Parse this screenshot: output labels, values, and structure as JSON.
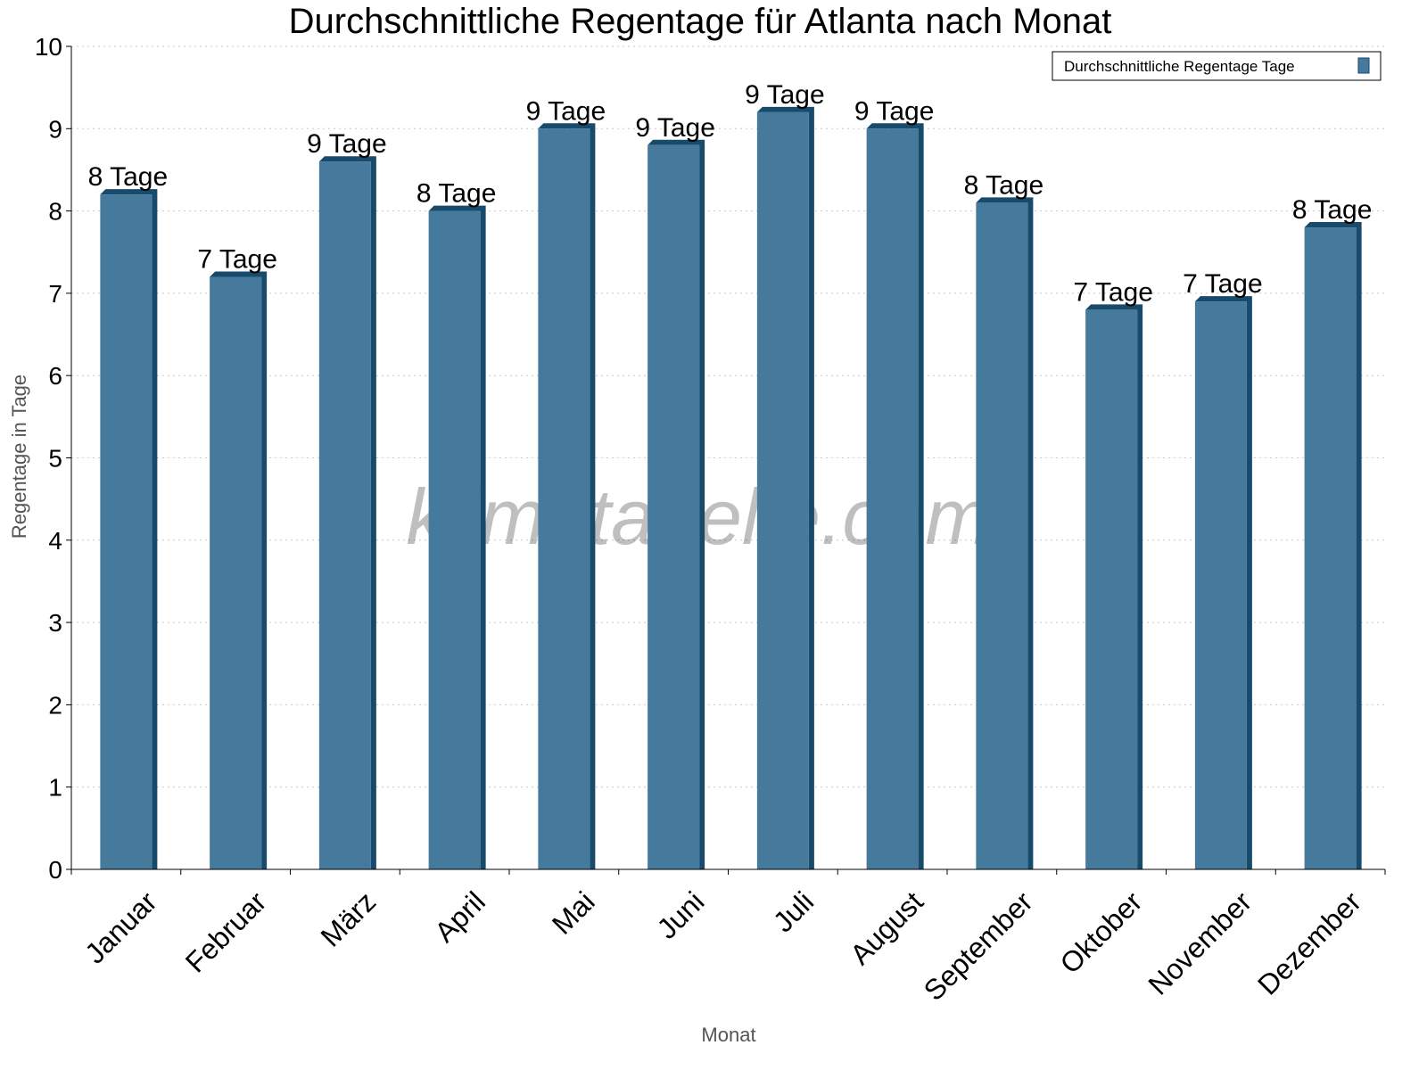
{
  "chart_data": {
    "type": "bar",
    "title": "Durchschnittliche Regentage für Atlanta nach Monat",
    "xlabel": "Monat",
    "ylabel": "Regentage in Tage",
    "ylim": [
      0,
      10
    ],
    "yticks": [
      "0",
      "1",
      "2",
      "3",
      "4",
      "5",
      "6",
      "7",
      "8",
      "9",
      "10"
    ],
    "grid": true,
    "legend_position": "top-right",
    "categories": [
      "Januar",
      "Februar",
      "März",
      "April",
      "Mai",
      "Juni",
      "Juli",
      "August",
      "September",
      "Oktober",
      "November",
      "Dezember"
    ],
    "series": [
      {
        "name": "Durchschnittliche Regentage Tage",
        "values": [
          8.2,
          7.2,
          8.6,
          8.0,
          9.0,
          8.8,
          9.2,
          9.0,
          8.1,
          6.8,
          6.9,
          7.8
        ],
        "data_labels": [
          "8 Tage",
          "7 Tage",
          "9 Tage",
          "8 Tage",
          "9 Tage",
          "9 Tage",
          "9 Tage",
          "9 Tage",
          "8 Tage",
          "7 Tage",
          "7 Tage",
          "8 Tage"
        ],
        "color": "#457a9c",
        "shade_color": "#174a6b"
      }
    ],
    "watermark": "klimatabelle.com"
  }
}
